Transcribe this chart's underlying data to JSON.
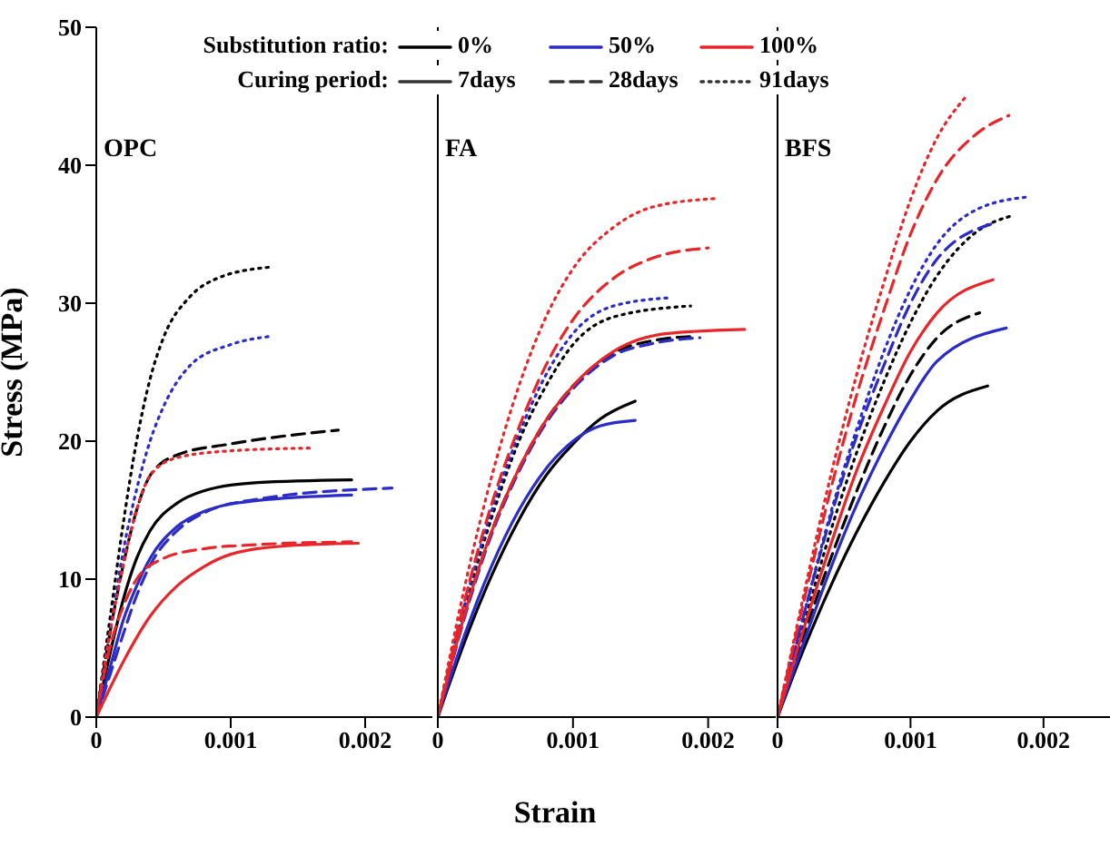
{
  "chart_data": [
    {
      "type": "line",
      "title": "OPC",
      "ylabel": "Stress (MPa)",
      "xlim": [
        0,
        0.0025
      ],
      "xticks": [
        0,
        0.001,
        0.002
      ],
      "ylim": [
        0,
        50
      ],
      "yticks": [
        0,
        10,
        20,
        30,
        40,
        50
      ],
      "grid": false,
      "marker": "none",
      "annotations": [
        "Substitution ratio:",
        "0%",
        "50%",
        "100%",
        "Curing period:",
        "7days",
        "28days",
        "91days"
      ],
      "series": [
        {
          "color": "#000000",
          "line_style": "solid",
          "x": [
            0,
            0.0001,
            0.0002,
            0.0003,
            0.0004,
            0.0006,
            0.0008,
            0.0012,
            0.0019
          ],
          "values": [
            0,
            4.5,
            8.5,
            11.5,
            13.5,
            15.5,
            16.4,
            17,
            17.2
          ]
        },
        {
          "color": "#000000",
          "line_style": "dashed",
          "x": [
            0,
            0.0001,
            0.0002,
            0.0003,
            0.0004,
            0.0006,
            0.001,
            0.0018
          ],
          "values": [
            0,
            6,
            11,
            15,
            17.5,
            19,
            19.8,
            20.8
          ]
        },
        {
          "color": "#000000",
          "line_style": "dotted",
          "x": [
            0,
            0.0001,
            0.0002,
            0.0003,
            0.0004,
            0.0005,
            0.0007,
            0.0009,
            0.00128
          ],
          "values": [
            0,
            7,
            14,
            20,
            24.5,
            27.5,
            30.5,
            31.8,
            32.6
          ]
        },
        {
          "color": "#2b2bc8",
          "line_style": "solid",
          "x": [
            0,
            0.0001,
            0.0002,
            0.0003,
            0.0004,
            0.0006,
            0.0008,
            0.0012,
            0.0019
          ],
          "values": [
            0,
            3.5,
            7,
            9.5,
            11.5,
            13.8,
            14.9,
            15.7,
            16.1
          ]
        },
        {
          "color": "#2b2bc8",
          "line_style": "dashed",
          "x": [
            0,
            0.0001,
            0.0002,
            0.0003,
            0.0004,
            0.0006,
            0.0008,
            0.0012,
            0.0022
          ],
          "values": [
            0,
            3,
            6,
            8.8,
            11,
            13.5,
            14.8,
            15.8,
            16.6
          ]
        },
        {
          "color": "#2b2bc8",
          "line_style": "dotted",
          "x": [
            0,
            0.0001,
            0.0002,
            0.0003,
            0.0004,
            0.0005,
            0.0007,
            0.001,
            0.0013
          ],
          "values": [
            0,
            6,
            12,
            16.5,
            20,
            22.5,
            25.5,
            27,
            27.6
          ]
        },
        {
          "color": "#e8262a",
          "line_style": "solid",
          "x": [
            0,
            0.0002,
            0.0004,
            0.0006,
            0.0008,
            0.001,
            0.0014,
            0.00195
          ],
          "values": [
            0,
            4,
            7.3,
            9.5,
            10.9,
            11.8,
            12.4,
            12.6
          ]
        },
        {
          "color": "#e8262a",
          "line_style": "dashed",
          "x": [
            0,
            0.0001,
            0.0002,
            0.0003,
            0.0005,
            0.0008,
            0.0012,
            0.0019
          ],
          "values": [
            0,
            5,
            8,
            10,
            11.5,
            12.2,
            12.5,
            12.7
          ]
        },
        {
          "color": "#e8262a",
          "line_style": "dotted",
          "x": [
            0,
            0.0001,
            0.0002,
            0.0003,
            0.0004,
            0.0006,
            0.001,
            0.0016
          ],
          "values": [
            0,
            6,
            11,
            15,
            17.5,
            18.8,
            19.3,
            19.5
          ]
        }
      ]
    },
    {
      "type": "line",
      "title": "FA",
      "xlabel": "Strain",
      "xlim": [
        0,
        0.0025
      ],
      "xticks": [
        0,
        0.001,
        0.002
      ],
      "ylim": [
        0,
        50
      ],
      "tick_labels": "x",
      "grid": false,
      "marker": "none",
      "series": [
        {
          "color": "#000000",
          "line_style": "solid",
          "x": [
            0,
            0.0002,
            0.0004,
            0.0006,
            0.0008,
            0.001,
            0.0012,
            0.00146
          ],
          "values": [
            0,
            5.5,
            10.3,
            14.3,
            17.5,
            19.8,
            21.6,
            22.9
          ]
        },
        {
          "color": "#000000",
          "line_style": "dashed",
          "x": [
            0,
            0.0002,
            0.0004,
            0.0006,
            0.0008,
            0.001,
            0.0013,
            0.0016,
            0.0019
          ],
          "values": [
            0,
            7.5,
            13.5,
            18,
            21.5,
            24,
            26.4,
            27.3,
            27.6
          ]
        },
        {
          "color": "#000000",
          "line_style": "dotted",
          "x": [
            0,
            0.0002,
            0.0004,
            0.0006,
            0.0008,
            0.001,
            0.0013,
            0.00187
          ],
          "values": [
            0,
            8,
            14.5,
            20,
            24,
            27,
            29,
            29.8
          ]
        },
        {
          "color": "#2b2bc8",
          "line_style": "solid",
          "x": [
            0,
            0.0002,
            0.0004,
            0.0006,
            0.0008,
            0.001,
            0.0012,
            0.00146
          ],
          "values": [
            0,
            6,
            11,
            15,
            18,
            20,
            21.1,
            21.5
          ]
        },
        {
          "color": "#2b2bc8",
          "line_style": "dashed",
          "x": [
            0,
            0.0002,
            0.0004,
            0.0006,
            0.0008,
            0.001,
            0.0013,
            0.0016,
            0.00194
          ],
          "values": [
            0,
            7.3,
            13.3,
            17.8,
            21.3,
            23.8,
            26.2,
            27.1,
            27.5
          ]
        },
        {
          "color": "#2b2bc8",
          "line_style": "dotted",
          "x": [
            0,
            0.0002,
            0.0004,
            0.0006,
            0.0008,
            0.001,
            0.0013,
            0.00173
          ],
          "values": [
            0,
            8.2,
            15,
            20.5,
            24.8,
            27.8,
            29.8,
            30.4
          ]
        },
        {
          "color": "#e8262a",
          "line_style": "solid",
          "x": [
            0,
            0.0002,
            0.0004,
            0.0006,
            0.0008,
            0.001,
            0.0013,
            0.0017,
            0.00227
          ],
          "values": [
            0,
            7.5,
            13.5,
            18,
            21.5,
            24,
            26.5,
            27.8,
            28.1
          ]
        },
        {
          "color": "#e8262a",
          "line_style": "dashed",
          "x": [
            0,
            0.0002,
            0.0004,
            0.0006,
            0.0008,
            0.001,
            0.0013,
            0.0016,
            0.002
          ],
          "values": [
            0,
            8.5,
            15.5,
            21,
            25.5,
            28.8,
            31.8,
            33.3,
            34
          ]
        },
        {
          "color": "#e8262a",
          "line_style": "dotted",
          "x": [
            0,
            0.0002,
            0.0004,
            0.0006,
            0.0008,
            0.001,
            0.0013,
            0.0016,
            0.00208
          ],
          "values": [
            0,
            9.5,
            17.5,
            24,
            29,
            32.5,
            35.5,
            37,
            37.6
          ]
        }
      ]
    },
    {
      "type": "line",
      "title": "BFS",
      "xlim": [
        0,
        0.0025
      ],
      "xticks": [
        0,
        0.001,
        0.002
      ],
      "ylim": [
        0,
        50
      ],
      "tick_labels": "x",
      "grid": false,
      "marker": "none",
      "series": [
        {
          "color": "#000000",
          "line_style": "solid",
          "x": [
            0,
            0.0002,
            0.0004,
            0.0006,
            0.0008,
            0.001,
            0.0012,
            0.00158
          ],
          "values": [
            0,
            5,
            9.5,
            13.5,
            17,
            20,
            22.2,
            24
          ]
        },
        {
          "color": "#000000",
          "line_style": "dashed",
          "x": [
            0,
            0.0002,
            0.0004,
            0.0006,
            0.0008,
            0.001,
            0.0012,
            0.00152
          ],
          "values": [
            0,
            6,
            11.5,
            16.5,
            21,
            24.8,
            27.5,
            29.3
          ]
        },
        {
          "color": "#000000",
          "line_style": "dotted",
          "x": [
            0,
            0.0002,
            0.0004,
            0.0006,
            0.0008,
            0.001,
            0.0012,
            0.0015,
            0.00175
          ],
          "values": [
            0,
            6.8,
            13.5,
            19.3,
            24.3,
            28.6,
            32,
            35.2,
            36.3
          ]
        },
        {
          "color": "#2b2bc8",
          "line_style": "solid",
          "x": [
            0,
            0.0002,
            0.0004,
            0.0006,
            0.0008,
            0.001,
            0.0012,
            0.00172
          ],
          "values": [
            0,
            5.5,
            10.8,
            15.5,
            19.5,
            23,
            25.8,
            28.2
          ]
        },
        {
          "color": "#2b2bc8",
          "line_style": "dashed",
          "x": [
            0,
            0.0002,
            0.0004,
            0.0006,
            0.0008,
            0.001,
            0.0012,
            0.00163
          ],
          "values": [
            0,
            7.5,
            14.5,
            20.5,
            25.5,
            30,
            33.2,
            35.8
          ]
        },
        {
          "color": "#2b2bc8",
          "line_style": "dotted",
          "x": [
            0,
            0.0002,
            0.0004,
            0.0006,
            0.0008,
            0.001,
            0.0012,
            0.0015,
            0.00188
          ],
          "values": [
            0,
            7.5,
            14.8,
            21,
            26.5,
            31,
            34.3,
            36.8,
            37.7
          ]
        },
        {
          "color": "#e8262a",
          "line_style": "solid",
          "x": [
            0,
            0.0002,
            0.0004,
            0.0006,
            0.0008,
            0.001,
            0.0012,
            0.00162
          ],
          "values": [
            0,
            6.5,
            12.5,
            18,
            22.5,
            26.5,
            29.3,
            31.7
          ]
        },
        {
          "color": "#e8262a",
          "line_style": "dashed",
          "x": [
            0,
            0.0002,
            0.0004,
            0.0006,
            0.0008,
            0.001,
            0.0012,
            0.0015,
            0.00174
          ],
          "values": [
            0,
            8.5,
            16.5,
            23.5,
            29.5,
            35,
            39,
            42.3,
            43.6
          ]
        },
        {
          "color": "#e8262a",
          "line_style": "dotted",
          "x": [
            0,
            0.0002,
            0.0004,
            0.0006,
            0.0008,
            0.001,
            0.0012,
            0.00141
          ],
          "values": [
            0,
            9,
            17.5,
            25,
            31.5,
            37.5,
            42,
            44.9
          ]
        }
      ]
    }
  ]
}
